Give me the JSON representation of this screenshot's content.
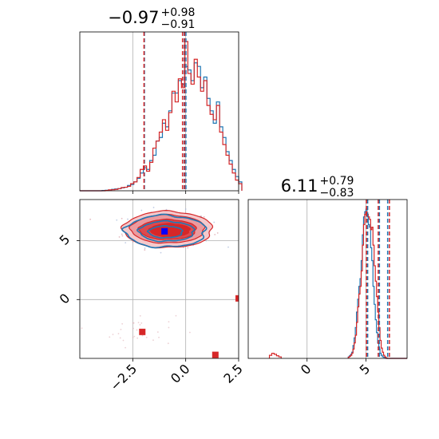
{
  "chart_data": {
    "type": "corner",
    "colors": {
      "blue": "#1f77b4",
      "red": "#d62728",
      "grid": "#b0b0b0",
      "marker": "#0000ff"
    },
    "params": [
      {
        "title_value": "−0.97",
        "title_plus": "+0.98",
        "title_minus": "−0.91",
        "range": [
          -5.0,
          2.5
        ],
        "ticks": [
          -2.5,
          0.0,
          2.5
        ],
        "tick_labels": [
          "−2.5",
          "0.0",
          "2.5"
        ],
        "quantiles_blue": [
          -1.95,
          -0.07,
          0.01
        ],
        "quantiles_red": [
          -1.97,
          -0.15,
          -0.05
        ]
      },
      {
        "title_value": "6.11",
        "title_plus": "+0.79",
        "title_minus": "−0.83",
        "range": [
          -5.0,
          8.5
        ],
        "ticks": [
          0,
          5
        ],
        "tick_labels": [
          "0",
          "5"
        ],
        "quantiles_blue": [
          5.15,
          6.15,
          6.85
        ],
        "quantiles_red": [
          5.05,
          6.05,
          7.0
        ]
      }
    ],
    "hist_x0": {
      "edges_start": -5.0,
      "bin_width": 0.15,
      "blue": [
        0,
        0,
        0,
        0,
        0,
        0,
        0,
        0.002,
        0.003,
        0.004,
        0.008,
        0.01,
        0.012,
        0.016,
        0.02,
        0.03,
        0.035,
        0.05,
        0.07,
        0.1,
        0.13,
        0.12,
        0.17,
        0.2,
        0.28,
        0.3,
        0.38,
        0.36,
        0.45,
        0.55,
        0.55,
        0.62,
        0.6,
        0.7,
        0.68,
        0.62,
        0.72,
        0.7,
        0.58,
        0.64,
        0.52,
        0.45,
        0.38,
        0.5,
        0.36,
        0.3,
        0.22,
        0.17,
        0.12,
        0.08,
        0.05
      ],
      "red": [
        0,
        0,
        0,
        0,
        0,
        0,
        0,
        0,
        0.002,
        0.005,
        0.006,
        0.008,
        0.012,
        0.018,
        0.02,
        0.025,
        0.04,
        0.05,
        0.075,
        0.12,
        0.14,
        0.11,
        0.16,
        0.24,
        0.28,
        0.33,
        0.4,
        0.34,
        0.44,
        0.56,
        0.5,
        0.63,
        0.58,
        0.84,
        0.66,
        0.6,
        0.74,
        0.64,
        0.56,
        0.62,
        0.48,
        0.43,
        0.4,
        0.48,
        0.33,
        0.26,
        0.2,
        0.15,
        0.1,
        0.06,
        0.04
      ]
    },
    "hist_x1": {
      "edges_start": 3.5,
      "bin_width": 0.1,
      "blue": [
        0.03,
        0.05,
        0.08,
        0.12,
        0.25,
        0.4,
        0.6,
        0.9,
        1.15,
        1.4,
        1.55,
        1.9,
        2.4,
        2.75,
        2.85,
        2.9,
        2.75,
        2.6,
        2.55,
        2.15,
        1.9,
        1.4,
        1.05,
        0.75,
        0.5,
        0.3,
        0.18,
        0.1,
        0.06,
        0.03,
        0.02,
        0.01,
        0,
        0,
        0,
        0,
        0,
        0,
        0,
        0,
        0,
        0,
        0,
        0,
        0,
        0,
        0,
        0,
        0,
        0
      ],
      "red": [
        0.02,
        0.04,
        0.06,
        0.1,
        0.18,
        0.3,
        0.45,
        0.7,
        1.0,
        1.25,
        1.4,
        1.7,
        2.2,
        2.6,
        2.8,
        2.85,
        2.8,
        2.75,
        2.7,
        2.5,
        2.55,
        2.2,
        1.8,
        1.5,
        1.2,
        0.9,
        0.6,
        0.35,
        0.2,
        0.12,
        0.06,
        0.03,
        0.01,
        0,
        0,
        0,
        0,
        0,
        0,
        0,
        0,
        0,
        0,
        0,
        0,
        0,
        0,
        0,
        0,
        0
      ],
      "outlier_bins_red": [
        [
          -3.2,
          0.06
        ],
        [
          -3.0,
          0.1
        ],
        [
          -2.8,
          0.08
        ],
        [
          -2.6,
          0.05
        ],
        [
          -2.4,
          0.03
        ]
      ]
    },
    "scatter_2d": {
      "centroid_blue": [
        -0.95,
        5.8
      ],
      "centroid_red": [
        -0.85,
        5.95
      ],
      "red_squares": [
        [
          -2.05,
          -2.75
        ],
        [
          1.4,
          -4.7
        ],
        [
          2.5,
          0.1
        ]
      ],
      "blue_square": [
        -1.0,
        5.8
      ]
    }
  }
}
